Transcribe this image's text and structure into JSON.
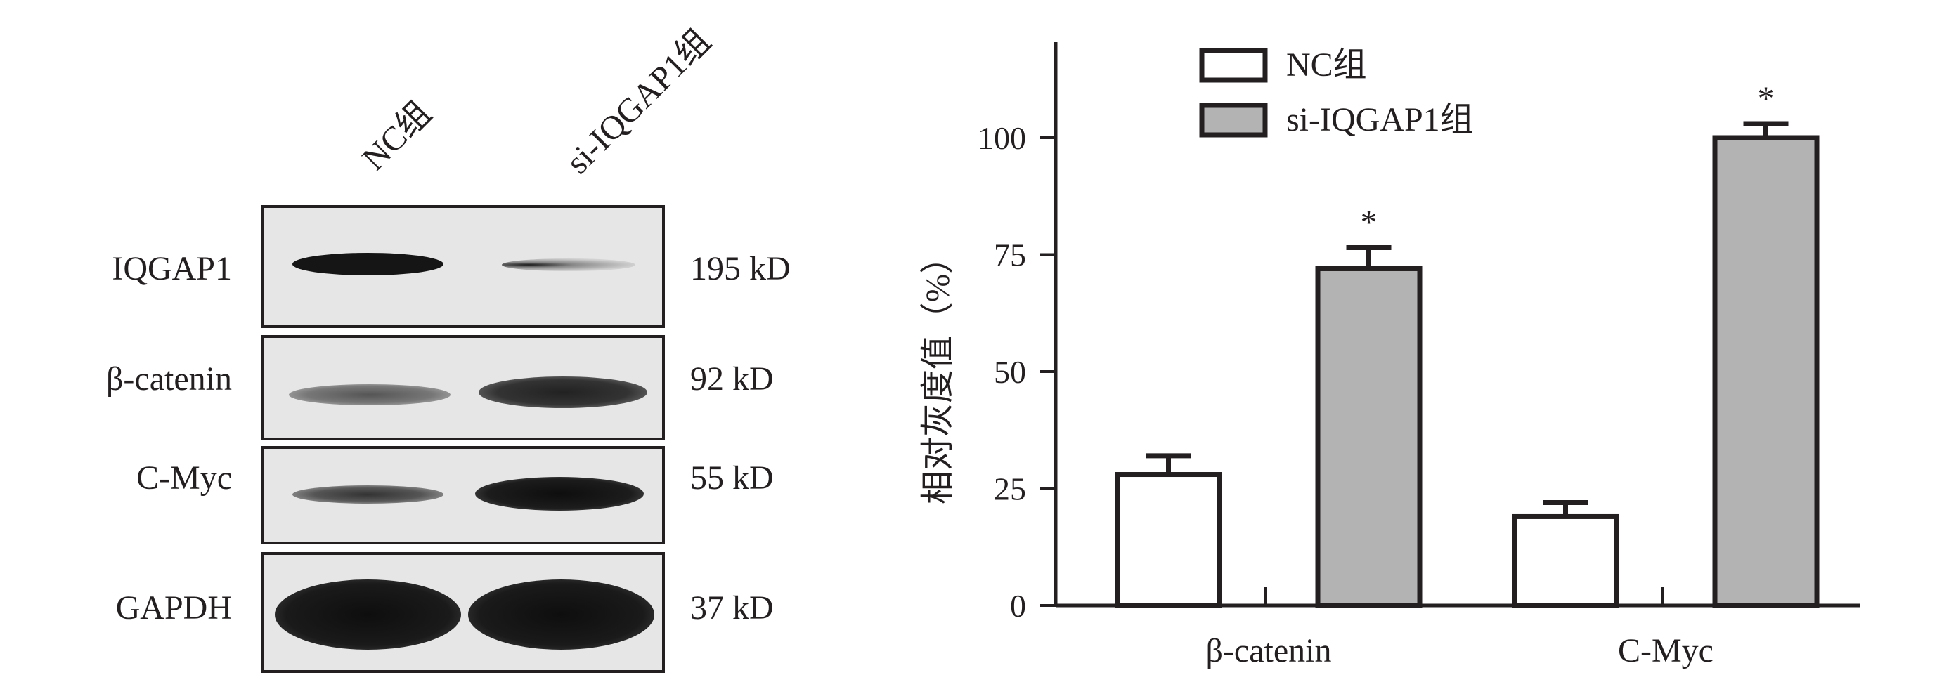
{
  "blot": {
    "lanes": [
      "NC组",
      "si-IQGAP1组"
    ],
    "rows": [
      {
        "name": "IQGAP1",
        "kd": "195 kD"
      },
      {
        "name": "β-catenin",
        "kd": "92 kD"
      },
      {
        "name": "C-Myc",
        "kd": "55 kD"
      },
      {
        "name": "GAPDH",
        "kd": "37 kD"
      }
    ]
  },
  "chart_data": {
    "type": "bar",
    "categories": [
      "β-catenin",
      "C-Myc"
    ],
    "series": [
      {
        "name": "NC组",
        "values": [
          28,
          19
        ],
        "errors": [
          4,
          3
        ],
        "color": "#ffffff",
        "significance": [
          "",
          ""
        ]
      },
      {
        "name": "si-IQGAP1组",
        "values": [
          72,
          100
        ],
        "errors": [
          4.5,
          3
        ],
        "color": "#b3b3b3",
        "significance": [
          "*",
          "*"
        ]
      }
    ],
    "ylabel": "相对灰度值（%）",
    "ylim": [
      0,
      120
    ],
    "yticks": [
      0,
      25,
      50,
      75,
      100
    ],
    "grid": false,
    "legend_position": "top"
  }
}
